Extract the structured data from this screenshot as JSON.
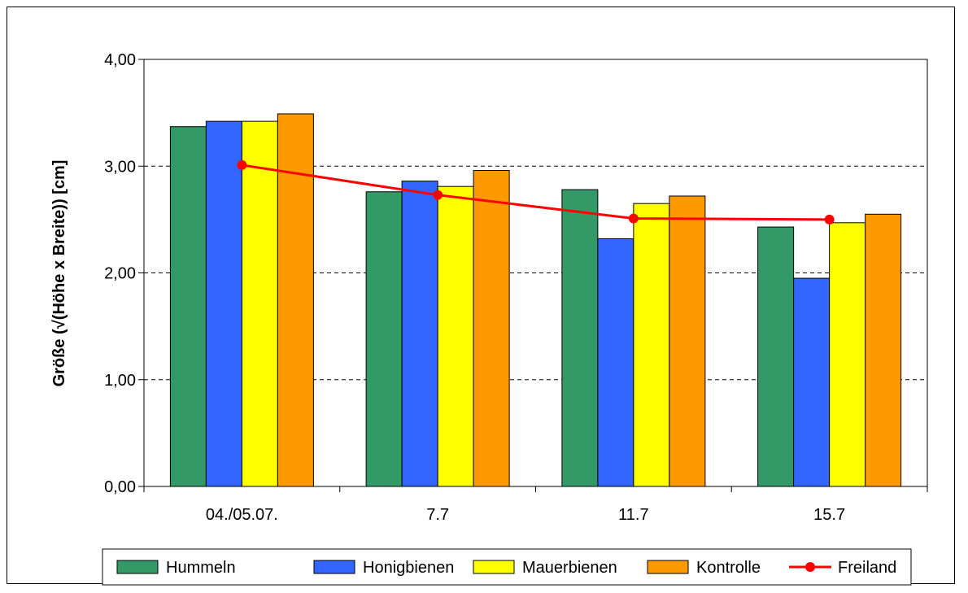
{
  "chart_data": {
    "type": "bar",
    "categories": [
      "04./05.07.",
      "7.7",
      "11.7",
      "15.7"
    ],
    "series": [
      {
        "name": "Hummeln",
        "type": "bar",
        "color": "#339966",
        "values": [
          3.37,
          2.76,
          2.78,
          2.43
        ]
      },
      {
        "name": "Honigbienen",
        "type": "bar",
        "color": "#3366ff",
        "values": [
          3.42,
          2.86,
          2.32,
          1.95
        ]
      },
      {
        "name": "Mauerbienen",
        "type": "bar",
        "color": "#ffff00",
        "values": [
          3.42,
          2.81,
          2.65,
          2.47
        ]
      },
      {
        "name": "Kontrolle",
        "type": "bar",
        "color": "#ff9900",
        "values": [
          3.49,
          2.96,
          2.72,
          2.55
        ]
      },
      {
        "name": "Freiland",
        "type": "line",
        "color": "#ff0000",
        "values": [
          3.01,
          2.73,
          2.51,
          2.5
        ]
      }
    ],
    "ylabel": "Größe (√(Höhe x Breite)) [cm]",
    "xlabel": "",
    "ylim": [
      0,
      4
    ],
    "yticks": [
      "0,00",
      "1,00",
      "2,00",
      "3,00",
      "4,00"
    ],
    "grid": true,
    "legend_position": "bottom"
  }
}
